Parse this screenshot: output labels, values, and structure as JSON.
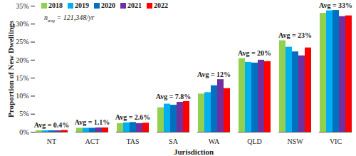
{
  "chart_data": {
    "type": "bar",
    "x_label": "Jurisdiction",
    "y_label": "Proportion of New Dwellings",
    "categories": [
      "NT",
      "ACT",
      "TAS",
      "SA",
      "WA",
      "QLD",
      "NSW",
      "VIC"
    ],
    "series": [
      {
        "name": "2018",
        "color": "#92D050",
        "values": [
          0.4,
          1.1,
          2.4,
          6.8,
          10.6,
          20.4,
          25.4,
          33.0
        ]
      },
      {
        "name": "2019",
        "color": "#00B0F0",
        "values": [
          0.4,
          1.1,
          2.6,
          7.8,
          11.0,
          19.4,
          23.6,
          33.7
        ]
      },
      {
        "name": "2020",
        "color": "#0070C0",
        "values": [
          0.4,
          1.1,
          2.7,
          7.5,
          12.9,
          19.2,
          22.3,
          33.8
        ]
      },
      {
        "name": "2021",
        "color": "#7030A0",
        "values": [
          0.4,
          1.2,
          2.4,
          8.3,
          14.6,
          20.0,
          21.2,
          32.1
        ]
      },
      {
        "name": "2022",
        "color": "#FF0000",
        "values": [
          0.5,
          1.2,
          2.5,
          8.5,
          12.1,
          19.6,
          23.4,
          32.3
        ]
      }
    ],
    "ylim": [
      0,
      35
    ],
    "yticks": [
      {
        "value": 0,
        "label": "0%"
      },
      {
        "value": 5,
        "label": "5%"
      },
      {
        "value": 10,
        "label": "10%"
      },
      {
        "value": 15,
        "label": "15%"
      },
      {
        "value": 20,
        "label": "20%"
      },
      {
        "value": 25,
        "label": "25%"
      },
      {
        "value": 30,
        "label": "30%"
      },
      {
        "value": 35,
        "label": "35%"
      }
    ],
    "grid": false,
    "legend": "top-left",
    "annotations": [
      {
        "category": "NT",
        "text": "Avg = 0.4%"
      },
      {
        "category": "ACT",
        "text": "Avg = 1.1%"
      },
      {
        "category": "TAS",
        "text": "Avg = 2.6%"
      },
      {
        "category": "SA",
        "text": "Avg = 7.8%"
      },
      {
        "category": "WA",
        "text": "Avg = 12%"
      },
      {
        "category": "QLD",
        "text": "Avg = 20%"
      },
      {
        "category": "NSW",
        "text": "Avg = 23%"
      },
      {
        "category": "VIC",
        "text": "Avg = 33%"
      }
    ],
    "note": {
      "symbol": "n",
      "subscript": "avg",
      "text": " = 121,348/yr"
    }
  }
}
